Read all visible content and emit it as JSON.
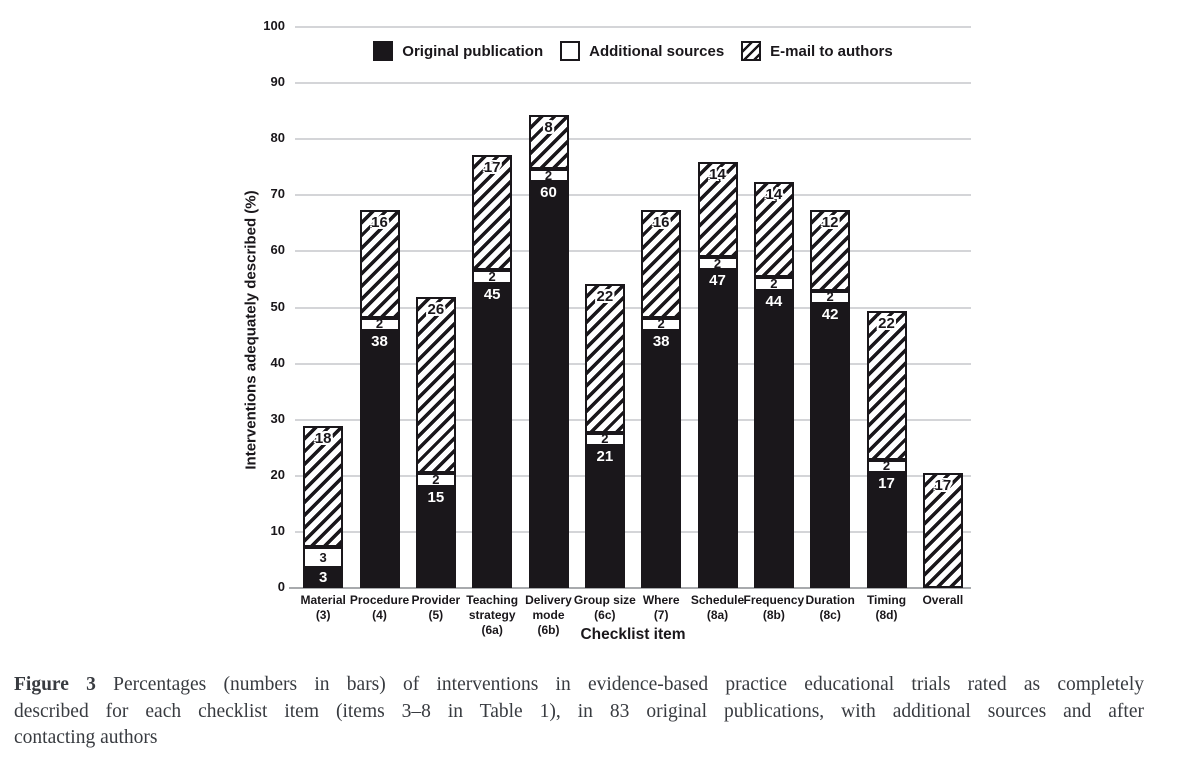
{
  "figure": {
    "caption": {
      "label": "Figure 3",
      "lines": [
        "Percentages (numbers in bars) of interventions in evidence-based practice educational trials rated as completely",
        "described for each checklist item (items 3–8 in Table 1), in 83 original publications, with additional sources and after",
        "contacting authors"
      ]
    }
  },
  "chart_data": {
    "type": "bar",
    "subtype": "stacked",
    "title": "",
    "ylabel": "Interventions adequately described (%)",
    "xlabel": "Checklist item",
    "ylim": [
      0,
      100
    ],
    "ytick_step": 10,
    "grid": "horizontal-gray",
    "legend_position": "top-center",
    "denominator": 83,
    "categories": [
      {
        "label": "Material",
        "code": "(3)"
      },
      {
        "label": "Procedure",
        "code": "(4)"
      },
      {
        "label": "Provider",
        "code": "(5)"
      },
      {
        "label": "Teaching strategy",
        "code": "(6a)"
      },
      {
        "label": "Delivery mode",
        "code": "(6b)"
      },
      {
        "label": "Group size",
        "code": "(6c)"
      },
      {
        "label": "Where",
        "code": "(7)"
      },
      {
        "label": "Schedule",
        "code": "(8a)"
      },
      {
        "label": "Frequency",
        "code": "(8b)"
      },
      {
        "label": "Duration",
        "code": "(8c)"
      },
      {
        "label": "Timing",
        "code": "(8d)"
      },
      {
        "label": "Overall",
        "code": ""
      }
    ],
    "series": [
      {
        "name": "Original publication",
        "style": "solid",
        "values": [
          3,
          38,
          15,
          45,
          60,
          21,
          38,
          47,
          44,
          42,
          17,
          0
        ]
      },
      {
        "name": "Additional sources",
        "style": "open",
        "values": [
          3,
          2,
          2,
          2,
          2,
          2,
          2,
          2,
          2,
          2,
          2,
          0
        ]
      },
      {
        "name": "E-mail to authors",
        "style": "hatch",
        "values": [
          18,
          16,
          26,
          17,
          8,
          22,
          16,
          14,
          14,
          12,
          22,
          17
        ]
      }
    ],
    "colors": {
      "bar_fill": "#1a171b",
      "segment_border": "#1a171b",
      "gridline": "#d4d5d8",
      "baseline": "#a8aaad",
      "caption_text": "#383b40"
    }
  }
}
